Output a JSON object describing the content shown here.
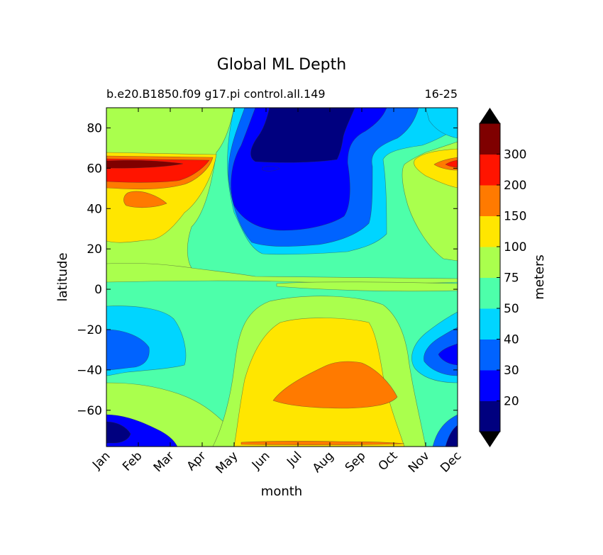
{
  "chart_data": {
    "type": "filled-contour",
    "title": "Global ML Depth",
    "subtitle_left": "b.e20.B1850.f09 g17.pi control.all.149",
    "subtitle_right": "16-25",
    "xlabel": "month",
    "ylabel": "latitude",
    "x_ticks": [
      "Jan",
      "Feb",
      "Mar",
      "Apr",
      "May",
      "Jun",
      "Jul",
      "Aug",
      "Sep",
      "Oct",
      "Nov",
      "Dec"
    ],
    "y_ticks": [
      80,
      60,
      40,
      20,
      0,
      -20,
      -40,
      -60
    ],
    "y_tick_labels": [
      "80",
      "60",
      "40",
      "20",
      "0",
      "−20",
      "−40",
      "−60"
    ],
    "ylim": [
      -78,
      90
    ],
    "colorbar": {
      "label": "meters",
      "levels": [
        10,
        20,
        30,
        40,
        50,
        75,
        100,
        150,
        200,
        300,
        400
      ],
      "tick_labels": [
        "20",
        "30",
        "40",
        "50",
        "75",
        "100",
        "150",
        "200",
        "300"
      ],
      "colors": [
        "#00007f",
        "#0000ff",
        "#0063ff",
        "#00d5ff",
        "#4dffaa",
        "#aaff4d",
        "#ffe600",
        "#ff7a00",
        "#ff1400",
        "#7f0000"
      ],
      "under_color": "#000000",
      "over_color": "#000000"
    },
    "regions": [
      {
        "name": "background",
        "level": "50-75",
        "color": "#4dffaa"
      },
      {
        "name": "arctic-deep-blue",
        "level": "10-20",
        "color": "#00007f"
      },
      {
        "name": "nh-summer-blue",
        "level": "20-30",
        "color": "#0000ff"
      },
      {
        "name": "nh-winter-peak",
        "level": "300-400",
        "color": "#7f0000"
      },
      {
        "name": "sh-winter-peak",
        "level": "150-200",
        "color": "#ff7a00"
      },
      {
        "name": "sh-summer-shallow",
        "level": "20-30",
        "color": "#0000ff"
      }
    ]
  }
}
